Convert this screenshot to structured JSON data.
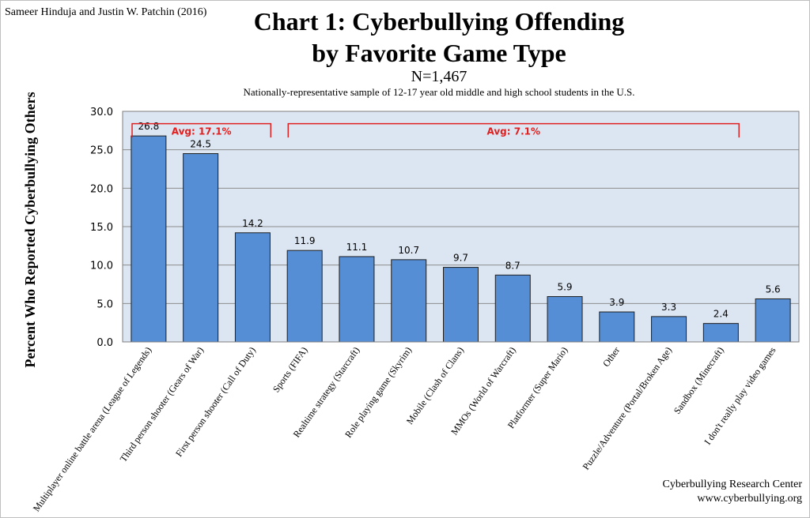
{
  "header": {
    "authors": "Sameer Hinduja and Justin W. Patchin (2016)",
    "title_line1": "Chart 1: Cyberbullying Offending",
    "title_line2": "by Favorite Game Type",
    "sample_size": "N=1,467",
    "subtitle": "Nationally-representative sample of 12-17 year old middle and high school students in the U.S."
  },
  "footer": {
    "org": "Cyberbullying Research Center",
    "url": "www.cyberbullying.org"
  },
  "colors": {
    "bar": "#558ed5",
    "bar_stroke": "#1f1f1f",
    "plot_bg": "#dce6f2",
    "gridline": "#8c8c8c",
    "bracket": "#e02020"
  },
  "chart_data": {
    "type": "bar",
    "ylabel": "Percent Who Reported Cyberbullying Others",
    "ylim": [
      0,
      30
    ],
    "yticks": [
      0,
      5,
      10,
      15,
      20,
      25,
      30
    ],
    "ytick_labels": [
      "0.0",
      "5.0",
      "10.0",
      "15.0",
      "20.0",
      "25.0",
      "30.0"
    ],
    "grid": true,
    "categories": [
      "Multiplayer online battle arena (League of Legends)",
      "Third person shooter (Gears of War)",
      "First person shooter (Call of Duty)",
      "Sports (FIFA)",
      "Realtime strategy (Starcraft)",
      "Role playing game (Skyrim)",
      "Mobile (Clash of Clans)",
      "MMOs (World of Warcraft)",
      "Platformer (Super Mario)",
      "Other",
      "Puzzle/Adventure (Portal/Broken Age)",
      "Sandbox (Minecraft)",
      "I don't really play video games"
    ],
    "values": [
      26.8,
      24.5,
      14.2,
      11.9,
      11.1,
      10.7,
      9.7,
      8.7,
      5.9,
      3.9,
      3.3,
      2.4,
      5.6
    ],
    "value_labels": [
      "26.8",
      "24.5",
      "14.2",
      "11.9",
      "11.1",
      "10.7",
      "9.7",
      "8.7",
      "5.9",
      "3.9",
      "3.3",
      "2.4",
      "5.6"
    ],
    "annotations": [
      {
        "text": "Avg: 17.1%",
        "from_index": 0,
        "to_index": 2
      },
      {
        "text": "Avg: 7.1%",
        "from_index": 3,
        "to_index": 11
      }
    ]
  }
}
